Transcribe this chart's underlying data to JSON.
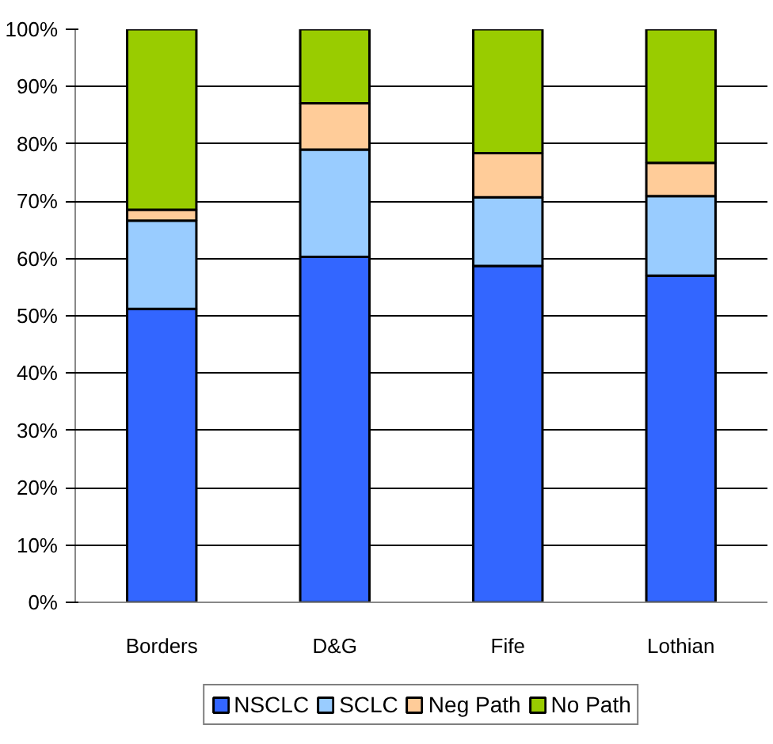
{
  "chart_data": {
    "type": "bar",
    "stacked": true,
    "categories": [
      "Borders",
      "D&G",
      "Fife",
      "Lothian"
    ],
    "series": [
      {
        "name": "NSCLC",
        "color": "#3366ff",
        "values": [
          51.2,
          60.3,
          58.7,
          57.0
        ]
      },
      {
        "name": "SCLC",
        "color": "#99ccff",
        "values": [
          15.4,
          18.7,
          12.0,
          13.9
        ]
      },
      {
        "name": "Neg Path",
        "color": "#ffcc99",
        "values": [
          1.9,
          8.1,
          7.7,
          5.8
        ]
      },
      {
        "name": "No Path",
        "color": "#99cc00",
        "values": [
          31.5,
          12.9,
          21.6,
          23.3
        ]
      }
    ],
    "ylim": [
      0,
      100
    ],
    "yticks": [
      {
        "value": 0,
        "label": "0%"
      },
      {
        "value": 10,
        "label": "10%"
      },
      {
        "value": 20,
        "label": "20%"
      },
      {
        "value": 30,
        "label": "30%"
      },
      {
        "value": 40,
        "label": "40%"
      },
      {
        "value": 50,
        "label": "50%"
      },
      {
        "value": 60,
        "label": "60%"
      },
      {
        "value": 70,
        "label": "70%"
      },
      {
        "value": 80,
        "label": "80%"
      },
      {
        "value": 90,
        "label": "90%"
      },
      {
        "value": 100,
        "label": "100%"
      }
    ],
    "grid": "y",
    "legend": "bottom"
  }
}
